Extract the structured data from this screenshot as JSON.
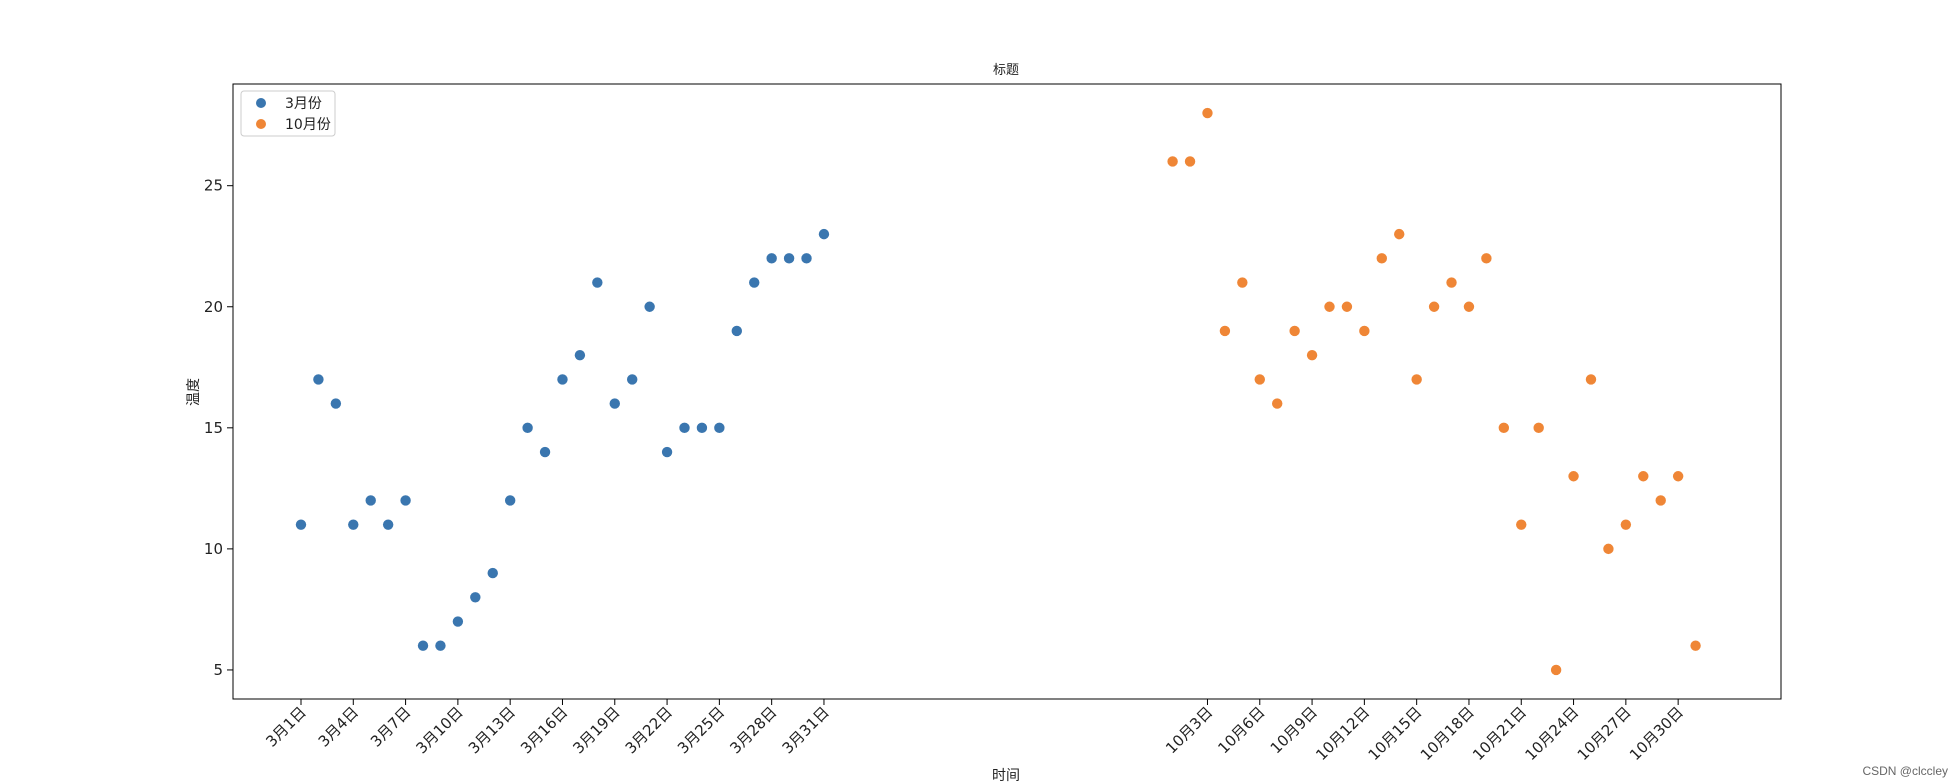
{
  "chart_data": {
    "type": "scatter",
    "title": "标题",
    "xlabel": "时间",
    "ylabel": "温度",
    "ylim": [
      3.8,
      29.2
    ],
    "xlim": [
      -3.9,
      84.9
    ],
    "grid": false,
    "legend_position": "top-left",
    "yticks": [
      5,
      10,
      15,
      20,
      25
    ],
    "xticks": [
      {
        "label": "3月1日",
        "x": 0
      },
      {
        "label": "3月4日",
        "x": 3
      },
      {
        "label": "3月7日",
        "x": 6
      },
      {
        "label": "3月10日",
        "x": 9
      },
      {
        "label": "3月13日",
        "x": 12
      },
      {
        "label": "3月16日",
        "x": 15
      },
      {
        "label": "3月19日",
        "x": 18
      },
      {
        "label": "3月22日",
        "x": 21
      },
      {
        "label": "3月25日",
        "x": 24
      },
      {
        "label": "3月28日",
        "x": 27
      },
      {
        "label": "3月31日",
        "x": 30
      },
      {
        "label": "10月3日",
        "x": 52
      },
      {
        "label": "10月6日",
        "x": 55
      },
      {
        "label": "10月9日",
        "x": 58
      },
      {
        "label": "10月12日",
        "x": 61
      },
      {
        "label": "10月15日",
        "x": 64
      },
      {
        "label": "10月18日",
        "x": 67
      },
      {
        "label": "10月21日",
        "x": 70
      },
      {
        "label": "10月24日",
        "x": 73
      },
      {
        "label": "10月27日",
        "x": 76
      },
      {
        "label": "10月30日",
        "x": 79
      }
    ],
    "series": [
      {
        "name": "3月份",
        "color": "#3a76af",
        "x": [
          0,
          1,
          2,
          3,
          4,
          5,
          6,
          7,
          8,
          9,
          10,
          11,
          12,
          13,
          14,
          15,
          16,
          17,
          18,
          19,
          20,
          21,
          22,
          23,
          24,
          25,
          26,
          27,
          28,
          29,
          30
        ],
        "y": [
          11,
          17,
          16,
          11,
          12,
          11,
          12,
          6,
          6,
          7,
          8,
          9,
          12,
          15,
          14,
          17,
          18,
          21,
          16,
          17,
          20,
          14,
          15,
          15,
          15,
          19,
          21,
          22,
          22,
          22,
          23
        ]
      },
      {
        "name": "10月份",
        "color": "#ef8636",
        "x": [
          50,
          51,
          52,
          53,
          54,
          55,
          56,
          57,
          58,
          59,
          60,
          61,
          62,
          63,
          64,
          65,
          66,
          67,
          68,
          69,
          70,
          71,
          72,
          73,
          74,
          75,
          76,
          77,
          78,
          79,
          80
        ],
        "y": [
          26,
          26,
          28,
          19,
          21,
          17,
          16,
          19,
          18,
          20,
          20,
          19,
          22,
          23,
          17,
          20,
          21,
          20,
          22,
          15,
          11,
          15,
          5,
          13,
          17,
          10,
          11,
          13,
          12,
          13,
          6
        ]
      }
    ]
  },
  "watermark": "CSDN @clccley"
}
